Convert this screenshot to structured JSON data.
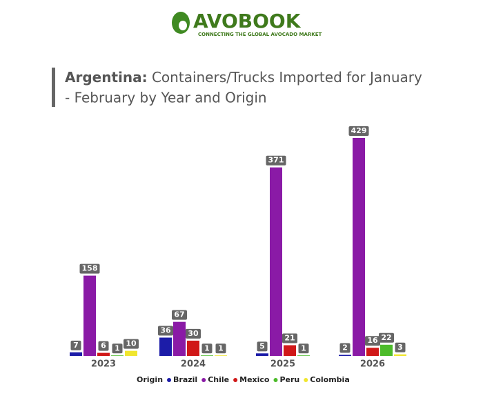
{
  "logo": {
    "name": "AVOBOOK",
    "tagline": "CONNECTING THE GLOBAL AVOCADO MARKET"
  },
  "chart_data": {
    "type": "bar",
    "title_bold": "Argentina:",
    "title": "Containers/Trucks Imported for January - February by Year and Origin",
    "categories": [
      "2023",
      "2024",
      "2025",
      "2026"
    ],
    "legend_title": "Origin",
    "series": [
      {
        "name": "Brazil",
        "color": "#1c1ca8",
        "values": [
          7,
          36,
          5,
          2
        ]
      },
      {
        "name": "Chile",
        "color": "#8a1aa6",
        "values": [
          158,
          67,
          371,
          429
        ]
      },
      {
        "name": "Mexico",
        "color": "#d01818",
        "values": [
          6,
          30,
          21,
          16
        ]
      },
      {
        "name": "Peru",
        "color": "#4cbb2a",
        "values": [
          1,
          1,
          1,
          22
        ]
      },
      {
        "name": "Colombia",
        "color": "#f0e62e",
        "values": [
          10,
          1,
          null,
          3
        ]
      }
    ]
  }
}
